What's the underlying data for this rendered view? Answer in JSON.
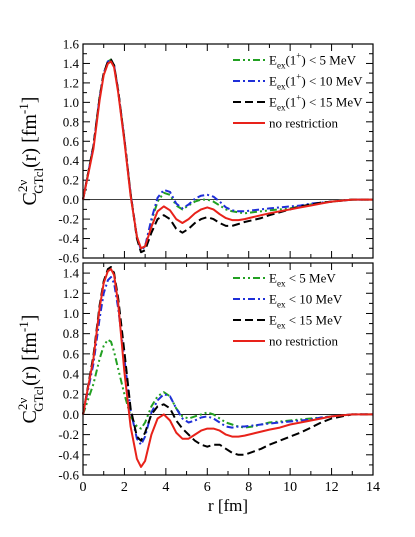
{
  "colors": {
    "green": "#22a022",
    "blue": "#1f2fd8",
    "black": "#000000",
    "red": "#e8221a"
  },
  "chart_data": [
    {
      "type": "line",
      "xlabel": "",
      "ylabel_main": "C",
      "ylabel_sup": "2ν",
      "ylabel_sub": "GTcl",
      "ylabel_rest": "(r) [fm",
      "ylabel_exp": "-1",
      "ylabel_end": "]",
      "xlim": [
        0,
        14
      ],
      "ylim": [
        -0.6,
        1.6
      ],
      "y_ticks": [
        "-0.6",
        "-0.4",
        "-0.2",
        "0.0",
        "0.2",
        "0.4",
        "0.6",
        "0.8",
        "1.0",
        "1.2",
        "1.4",
        "1.6"
      ],
      "legend": [
        {
          "base": "E",
          "sub": "ex",
          "mid": "(1",
          "sup": "+",
          "tail": ") < 5 MeV"
        },
        {
          "base": "E",
          "sub": "ex",
          "mid": "(1",
          "sup": "+",
          "tail": ") < 10 MeV"
        },
        {
          "base": "E",
          "sub": "ex",
          "mid": "(1",
          "sup": "+",
          "tail": ") < 15 MeV"
        },
        {
          "base": "no restriction",
          "sub": "",
          "mid": "",
          "sup": "",
          "tail": ""
        }
      ],
      "x": [
        0,
        0.5,
        0.8,
        1.0,
        1.2,
        1.35,
        1.5,
        1.7,
        2.0,
        2.3,
        2.6,
        2.8,
        3.0,
        3.3,
        3.6,
        3.9,
        4.2,
        4.5,
        4.8,
        5.1,
        5.4,
        5.7,
        6.0,
        6.3,
        6.6,
        6.9,
        7.2,
        7.5,
        7.8,
        8.2,
        8.6,
        9.0,
        9.5,
        10.0,
        10.5,
        11.0,
        11.5,
        12.0,
        12.5,
        13.0,
        13.5,
        14.0
      ],
      "series": [
        {
          "style": "dash-dot-dot",
          "color_key": "green",
          "values": [
            0,
            0.55,
            1.05,
            1.3,
            1.42,
            1.44,
            1.38,
            1.12,
            0.62,
            0.06,
            -0.38,
            -0.52,
            -0.48,
            -0.22,
            -0.02,
            0.07,
            0.05,
            -0.06,
            -0.1,
            -0.06,
            -0.02,
            0.0,
            0.0,
            -0.02,
            -0.06,
            -0.1,
            -0.12,
            -0.13,
            -0.14,
            -0.13,
            -0.12,
            -0.11,
            -0.1,
            -0.09,
            -0.07,
            -0.05,
            -0.03,
            -0.02,
            -0.01,
            0.0,
            0.0,
            0.0
          ]
        },
        {
          "style": "dash-dot",
          "color_key": "blue",
          "values": [
            0,
            0.55,
            1.05,
            1.3,
            1.42,
            1.44,
            1.38,
            1.12,
            0.62,
            0.06,
            -0.38,
            -0.52,
            -0.48,
            -0.2,
            0.02,
            0.1,
            0.08,
            -0.04,
            -0.09,
            -0.05,
            0.01,
            0.04,
            0.05,
            0.03,
            -0.02,
            -0.08,
            -0.11,
            -0.12,
            -0.12,
            -0.11,
            -0.1,
            -0.09,
            -0.08,
            -0.07,
            -0.06,
            -0.04,
            -0.03,
            -0.02,
            -0.01,
            0.0,
            0.0,
            0.0
          ]
        },
        {
          "style": "dashed",
          "color_key": "black",
          "values": [
            0,
            0.55,
            1.05,
            1.3,
            1.42,
            1.44,
            1.38,
            1.12,
            0.62,
            0.06,
            -0.4,
            -0.54,
            -0.52,
            -0.34,
            -0.2,
            -0.16,
            -0.2,
            -0.3,
            -0.34,
            -0.3,
            -0.24,
            -0.2,
            -0.18,
            -0.2,
            -0.24,
            -0.27,
            -0.27,
            -0.25,
            -0.23,
            -0.21,
            -0.19,
            -0.16,
            -0.13,
            -0.1,
            -0.07,
            -0.05,
            -0.03,
            -0.02,
            -0.01,
            0.0,
            0.0,
            0.0
          ]
        },
        {
          "style": "solid",
          "color_key": "red",
          "values": [
            0,
            0.52,
            1.02,
            1.28,
            1.4,
            1.42,
            1.36,
            1.1,
            0.6,
            0.04,
            -0.38,
            -0.5,
            -0.48,
            -0.28,
            -0.12,
            -0.07,
            -0.11,
            -0.2,
            -0.24,
            -0.2,
            -0.14,
            -0.1,
            -0.08,
            -0.1,
            -0.15,
            -0.19,
            -0.21,
            -0.21,
            -0.2,
            -0.18,
            -0.16,
            -0.14,
            -0.12,
            -0.1,
            -0.08,
            -0.06,
            -0.04,
            -0.02,
            -0.01,
            0.0,
            0.0,
            0.0
          ]
        }
      ]
    },
    {
      "type": "line",
      "xlabel": "r [fm]",
      "ylabel_main": "C",
      "ylabel_sup": "2ν",
      "ylabel_sub": "GTcl",
      "ylabel_rest": "(r) [fm",
      "ylabel_exp": "-1",
      "ylabel_end": "]",
      "xlim": [
        0,
        14
      ],
      "ylim": [
        -0.6,
        1.5
      ],
      "x_ticks": [
        "0",
        "2",
        "4",
        "6",
        "8",
        "10",
        "12",
        "14"
      ],
      "y_ticks": [
        "-0.6",
        "-0.4",
        "-0.2",
        "0.0",
        "0.2",
        "0.4",
        "0.6",
        "0.8",
        "1.0",
        "1.2",
        "1.4"
      ],
      "legend": [
        {
          "base": "E",
          "sub": "ex",
          "mid": "",
          "sup": "",
          "tail": " < 5 MeV"
        },
        {
          "base": "E",
          "sub": "ex",
          "mid": "",
          "sup": "",
          "tail": " < 10 MeV"
        },
        {
          "base": "E",
          "sub": "ex",
          "mid": "",
          "sup": "",
          "tail": " < 15 MeV"
        },
        {
          "base": "no restriction",
          "sub": "",
          "mid": "",
          "sup": "",
          "tail": ""
        }
      ],
      "x": [
        0,
        0.5,
        0.8,
        1.0,
        1.2,
        1.35,
        1.5,
        1.7,
        2.0,
        2.3,
        2.6,
        2.8,
        3.0,
        3.3,
        3.6,
        3.9,
        4.2,
        4.5,
        4.8,
        5.1,
        5.4,
        5.7,
        6.0,
        6.3,
        6.6,
        6.9,
        7.2,
        7.5,
        7.8,
        8.2,
        8.6,
        9.0,
        9.5,
        10.0,
        10.5,
        11.0,
        11.5,
        12.0,
        12.5,
        13.0,
        13.5,
        14.0
      ],
      "series": [
        {
          "style": "dash-dot-dot",
          "color_key": "green",
          "values": [
            0,
            0.3,
            0.55,
            0.68,
            0.74,
            0.72,
            0.62,
            0.45,
            0.2,
            -0.02,
            -0.12,
            -0.14,
            -0.08,
            0.08,
            0.18,
            0.22,
            0.18,
            0.06,
            -0.02,
            -0.04,
            -0.02,
            0.0,
            0.02,
            0.0,
            -0.04,
            -0.08,
            -0.1,
            -0.12,
            -0.13,
            -0.12,
            -0.1,
            -0.08,
            -0.07,
            -0.06,
            -0.05,
            -0.04,
            -0.03,
            -0.02,
            -0.01,
            0.0,
            0.0,
            0.0
          ]
        },
        {
          "style": "dash-dot",
          "color_key": "blue",
          "values": [
            0,
            0.5,
            0.95,
            1.2,
            1.33,
            1.36,
            1.3,
            1.05,
            0.55,
            0.04,
            -0.24,
            -0.3,
            -0.22,
            0.02,
            0.14,
            0.2,
            0.18,
            0.06,
            -0.04,
            -0.08,
            -0.06,
            -0.03,
            -0.02,
            -0.04,
            -0.08,
            -0.12,
            -0.13,
            -0.12,
            -0.12,
            -0.11,
            -0.1,
            -0.09,
            -0.08,
            -0.07,
            -0.06,
            -0.05,
            -0.03,
            -0.02,
            -0.01,
            0.0,
            0.0,
            0.0
          ]
        },
        {
          "style": "dashed",
          "color_key": "black",
          "values": [
            0,
            0.58,
            1.08,
            1.32,
            1.44,
            1.46,
            1.4,
            1.15,
            0.62,
            0.06,
            -0.22,
            -0.26,
            -0.18,
            0.0,
            0.08,
            0.1,
            0.06,
            -0.06,
            -0.14,
            -0.2,
            -0.26,
            -0.3,
            -0.32,
            -0.3,
            -0.3,
            -0.34,
            -0.38,
            -0.4,
            -0.4,
            -0.37,
            -0.34,
            -0.3,
            -0.26,
            -0.22,
            -0.18,
            -0.13,
            -0.08,
            -0.04,
            -0.02,
            0.0,
            0.0,
            0.0
          ]
        },
        {
          "style": "solid",
          "color_key": "red",
          "values": [
            0,
            0.55,
            1.05,
            1.3,
            1.42,
            1.44,
            1.38,
            1.1,
            0.42,
            -0.12,
            -0.44,
            -0.52,
            -0.46,
            -0.2,
            -0.04,
            0.0,
            -0.06,
            -0.18,
            -0.24,
            -0.24,
            -0.2,
            -0.16,
            -0.14,
            -0.14,
            -0.16,
            -0.2,
            -0.22,
            -0.22,
            -0.21,
            -0.19,
            -0.17,
            -0.15,
            -0.13,
            -0.1,
            -0.08,
            -0.06,
            -0.04,
            -0.02,
            -0.01,
            0.0,
            0.0,
            0.0
          ]
        }
      ]
    }
  ]
}
